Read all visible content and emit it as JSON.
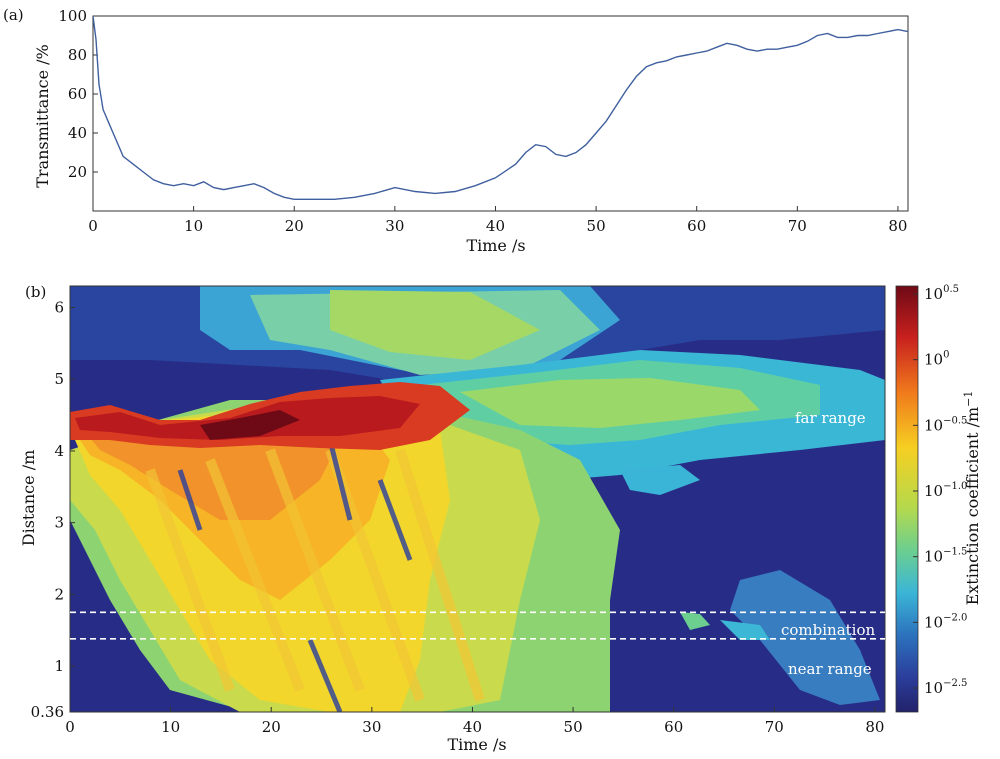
{
  "chart_data": [
    {
      "panel_label": "(a)",
      "type": "line",
      "xlabel": "Time /s",
      "ylabel": "Transmittance /%",
      "xlim": [
        0,
        81
      ],
      "ylim": [
        0,
        100
      ],
      "xticks": [
        "0",
        "10",
        "20",
        "30",
        "40",
        "50",
        "60",
        "70",
        "80"
      ],
      "yticks": [
        "20",
        "40",
        "60",
        "80",
        "100"
      ],
      "grid": false,
      "line_color": "#3f5f9e",
      "series": [
        {
          "x": [
            0,
            0.3,
            0.6,
            1,
            1.5,
            2,
            3,
            4,
            5,
            6,
            7,
            8,
            9,
            10,
            11,
            12,
            13,
            14,
            15,
            16,
            17,
            18,
            19,
            20,
            22,
            24,
            26,
            28,
            30,
            32,
            34,
            36,
            38,
            40,
            42,
            43,
            44,
            45,
            46,
            47,
            48,
            49,
            50,
            51,
            52,
            53,
            54,
            55,
            56,
            57,
            58,
            59,
            60,
            61,
            62,
            63,
            64,
            65,
            66,
            67,
            68,
            69,
            70,
            71,
            72,
            73,
            74,
            75,
            76,
            77,
            78,
            79,
            80,
            81
          ],
          "y": [
            100,
            88,
            65,
            52,
            46,
            40,
            28,
            24,
            20,
            16,
            14,
            13,
            14,
            13,
            15,
            12,
            11,
            12,
            13,
            14,
            12,
            9,
            7,
            6,
            6,
            6,
            7,
            9,
            12,
            10,
            9,
            10,
            13,
            17,
            24,
            30,
            34,
            33,
            29,
            28,
            30,
            34,
            40,
            46,
            54,
            62,
            69,
            74,
            76,
            77,
            79,
            80,
            81,
            82,
            84,
            86,
            85,
            83,
            82,
            83,
            83,
            84,
            85,
            87,
            90,
            91,
            89,
            89,
            90,
            90,
            91,
            92,
            93,
            92
          ]
        }
      ]
    },
    {
      "panel_label": "(b)",
      "type": "heatmap",
      "xlabel": "Time /s",
      "ylabel": "Distance /m",
      "xlim": [
        0,
        81
      ],
      "ylim": [
        0.36,
        6.3
      ],
      "xticks": [
        "0",
        "10",
        "20",
        "30",
        "40",
        "50",
        "60",
        "70",
        "80"
      ],
      "yticks": [
        "0.36",
        "1",
        "2",
        "3",
        "4",
        "5",
        "6"
      ],
      "colorbar": {
        "label": "Extinction coefficient /m",
        "label_exponent": "−1",
        "scale": "log",
        "ticks": [
          {
            "base": "10",
            "exp": "0.5"
          },
          {
            "base": "10",
            "exp": "0"
          },
          {
            "base": "10",
            "exp": "−0.5"
          },
          {
            "base": "10",
            "exp": "−1.0"
          },
          {
            "base": "10",
            "exp": "−1.5"
          },
          {
            "base": "10",
            "exp": "−2.0"
          },
          {
            "base": "10",
            "exp": "−2.5"
          }
        ],
        "colors": [
          "#7d0c18",
          "#d7261e",
          "#f5891a",
          "#f7d41f",
          "#b9db4a",
          "#6fd08a",
          "#3cb8d6",
          "#2d7bc2",
          "#2b3f9e",
          "#24246b"
        ]
      },
      "boundaries": [
        1.75,
        1.38
      ],
      "annotations": [
        "far range",
        "combination",
        "near range"
      ]
    }
  ]
}
